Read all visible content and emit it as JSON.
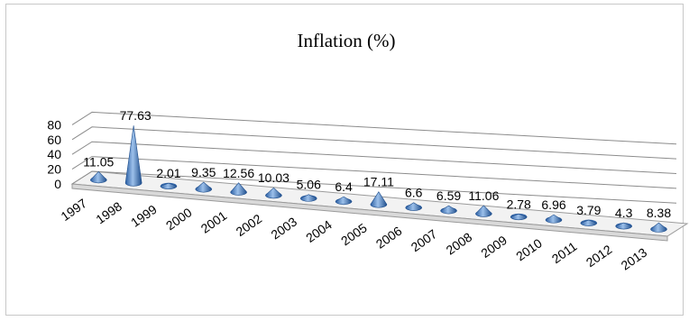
{
  "chart_data": {
    "type": "bar",
    "style": "3d-cone",
    "title": "Inflation (%)",
    "xlabel": "",
    "ylabel": "",
    "categories": [
      "1997",
      "1998",
      "1999",
      "2000",
      "2001",
      "2002",
      "2003",
      "2004",
      "2005",
      "2006",
      "2007",
      "2008",
      "2009",
      "2010",
      "2011",
      "2012",
      "2013"
    ],
    "series": [
      {
        "values": [
          11.05,
          77.63,
          2.01,
          9.35,
          12.56,
          10.03,
          5.06,
          6.4,
          17.11,
          6.6,
          6.59,
          11.06,
          2.78,
          6.96,
          3.79,
          4.3,
          8.38
        ],
        "labels": [
          "11.05",
          "77.63",
          "2.01",
          "9.35",
          "12.56",
          "10.03",
          "5.06",
          "6.4",
          "17.11",
          "6.6",
          "6.59",
          "11.06",
          "2.78",
          "6.96",
          "3.79",
          "4.3",
          "8.38"
        ]
      }
    ],
    "y_ticks": [
      "0",
      "20",
      "40",
      "60",
      "80"
    ],
    "ylim": [
      0,
      80
    ],
    "grid": true,
    "legend": "none",
    "colors": {
      "cone": "#4a7fc1",
      "cone_light": "#9cc0ea",
      "cone_dark": "#1f4e8c",
      "grid": "#8c8c8c",
      "floor": "#f2f2f2"
    }
  }
}
